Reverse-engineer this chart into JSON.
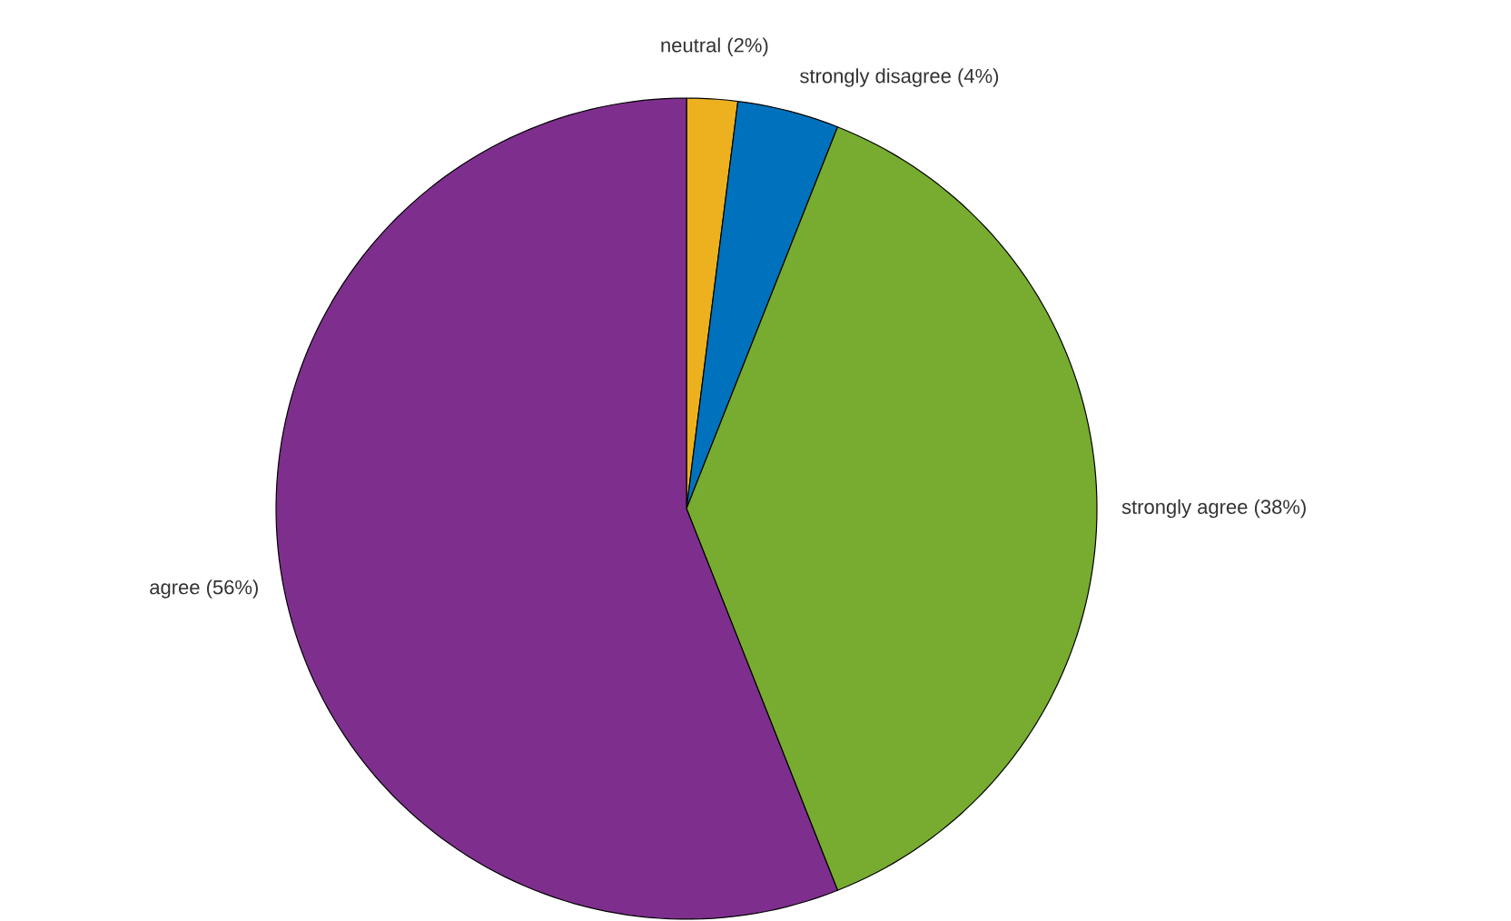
{
  "chart_data": {
    "type": "pie",
    "categories": [
      "neutral (2%)",
      "strongly disagree (4%)",
      "strongly agree (38%)",
      "agree (56%)"
    ],
    "values": [
      2,
      4,
      38,
      56
    ],
    "colors": [
      "#edb120",
      "#0072bd",
      "#77ac30",
      "#7e2f8e"
    ]
  }
}
